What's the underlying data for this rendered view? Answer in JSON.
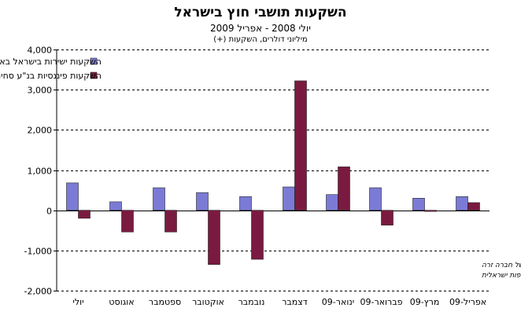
{
  "chart_data": {
    "type": "bar",
    "title": "השקעות תושבי חוץ בישראל",
    "subtitle": "יולי 2008 - אפריל 2009",
    "units_label": "מיליוני דולרים, השקעות (+)",
    "categories": [
      "יולי",
      "אוגוסט",
      "ספטמבר",
      "אוקטובר",
      "נובמבר",
      "דצמבר",
      "ינואר-09",
      "פברואר-09",
      "מרץ-09",
      "אפריל-09"
    ],
    "series": [
      {
        "name": "השקעות ישירות בישראל באמצעות הבנקים",
        "color": "#7b7bd6",
        "values": [
          680,
          210,
          560,
          440,
          340,
          580,
          390,
          560,
          300,
          340
        ]
      },
      {
        "name": "השקעות פיננסיות בנ\"ע סחירים",
        "color": "#7a1a40",
        "values": [
          -200,
          -540,
          -540,
          -1350,
          -1220,
          3220,
          1080,
          -370,
          -30,
          190
        ]
      }
    ],
    "ylim": [
      -2000,
      4000
    ],
    "yticks": [
      -2000,
      -1000,
      0,
      1000,
      2000,
      3000,
      4000
    ],
    "ytick_labels": [
      "-2,000",
      "-1,000",
      "0",
      "1,000",
      "2,000",
      "3,000",
      "4,000"
    ],
    "grid": "dashed horizontal",
    "legend_position": "top-left",
    "annotation_lines": [
      "דצמבר כולל רכישה גדולה של חברה זרה",
      "ע\"י חברת תרופות ישראלית"
    ]
  }
}
